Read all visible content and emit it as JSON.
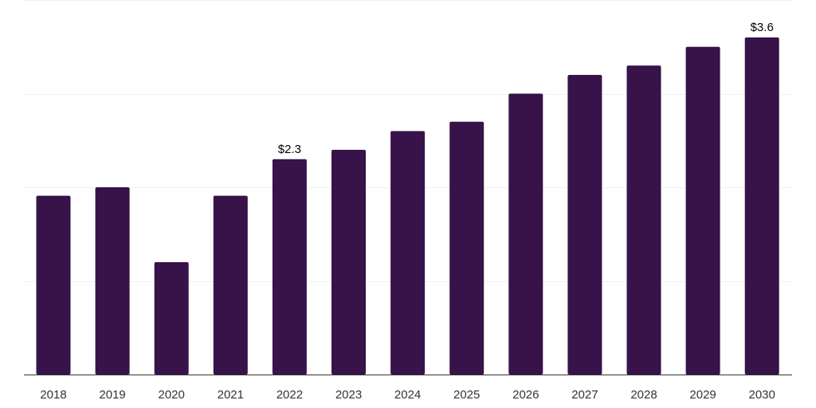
{
  "chart_data": {
    "type": "bar",
    "title": "",
    "xlabel": "",
    "ylabel": "",
    "categories": [
      "2018",
      "2019",
      "2020",
      "2021",
      "2022",
      "2023",
      "2024",
      "2025",
      "2026",
      "2027",
      "2028",
      "2029",
      "2030"
    ],
    "values": [
      1.91,
      2.0,
      1.2,
      1.91,
      2.3,
      2.4,
      2.6,
      2.7,
      3.0,
      3.2,
      3.3,
      3.5,
      3.6
    ],
    "data_labels": [
      {
        "index": 4,
        "text": "$2.3"
      },
      {
        "index": 12,
        "text": "$3.6"
      }
    ],
    "ylim": [
      0,
      4.0
    ],
    "gridlines": [
      0,
      1,
      2,
      3,
      4
    ],
    "grid": true,
    "legend": "none",
    "bar_color": "#371349",
    "axis_color": "#333333",
    "grid_color": "#f0f0f0"
  }
}
